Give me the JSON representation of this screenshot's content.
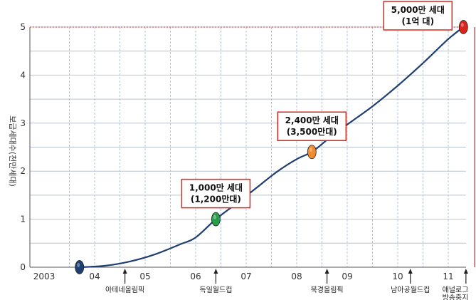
{
  "chart_data": {
    "type": "line",
    "ylabel": "보급세대수(천만세대)",
    "ylim": [
      0,
      5
    ],
    "yticks": [
      "0",
      "1",
      "2",
      "3",
      "4",
      "5"
    ],
    "xlim": [
      2003,
      2011.3
    ],
    "xticks": [
      {
        "x": 2003,
        "label": "2003"
      },
      {
        "x": 2004,
        "label": "04"
      },
      {
        "x": 2005,
        "label": "05"
      },
      {
        "x": 2006,
        "label": "06"
      },
      {
        "x": 2007,
        "label": "07"
      },
      {
        "x": 2008,
        "label": "08"
      },
      {
        "x": 2009,
        "label": "09"
      },
      {
        "x": 2010,
        "label": "10"
      },
      {
        "x": 2011,
        "label": "11"
      }
    ],
    "grid": true,
    "series": [
      {
        "color": "#1f3f73",
        "points": [
          {
            "x": 2003.7,
            "y": 0.0
          },
          {
            "x": 2004.2,
            "y": 0.03
          },
          {
            "x": 2004.7,
            "y": 0.12
          },
          {
            "x": 2005.2,
            "y": 0.27
          },
          {
            "x": 2005.7,
            "y": 0.48
          },
          {
            "x": 2006.0,
            "y": 0.62
          },
          {
            "x": 2006.4,
            "y": 1.0
          },
          {
            "x": 2006.8,
            "y": 1.32
          },
          {
            "x": 2007.2,
            "y": 1.65
          },
          {
            "x": 2007.6,
            "y": 1.98
          },
          {
            "x": 2008.0,
            "y": 2.25
          },
          {
            "x": 2008.3,
            "y": 2.4
          },
          {
            "x": 2008.6,
            "y": 2.65
          },
          {
            "x": 2009.0,
            "y": 2.97
          },
          {
            "x": 2009.5,
            "y": 3.35
          },
          {
            "x": 2010.0,
            "y": 3.78
          },
          {
            "x": 2010.5,
            "y": 4.25
          },
          {
            "x": 2011.0,
            "y": 4.75
          },
          {
            "x": 2011.3,
            "y": 5.0
          }
        ]
      }
    ],
    "markers": [
      {
        "x": 2003.7,
        "y": 0,
        "color": "#1f3f73"
      },
      {
        "x": 2006.4,
        "y": 1.0,
        "color": "#2a9d4a"
      },
      {
        "x": 2008.3,
        "y": 2.4,
        "color": "#f28a2e"
      },
      {
        "x": 2011.3,
        "y": 5.0,
        "color": "#d9261c"
      }
    ],
    "annotations": [
      {
        "x": 2006.4,
        "y": 1.0,
        "lines": [
          "1,000만 세대",
          "(1,200만대)"
        ]
      },
      {
        "x": 2008.3,
        "y": 2.4,
        "lines": [
          "2,400만 세대",
          "(3,500만대)"
        ]
      },
      {
        "x": 2011.3,
        "y": 5.0,
        "lines": [
          "5,000만 세대",
          "(1억 대)"
        ]
      }
    ],
    "events": [
      {
        "x": 2004.6,
        "label": "아테네올림픽"
      },
      {
        "x": 2006.4,
        "label": "독일월드컵"
      },
      {
        "x": 2008.6,
        "label": "북경올림픽"
      },
      {
        "x": 2010.25,
        "label": "남아공월드컵"
      },
      {
        "x": 2011.35,
        "label": "애널로그",
        "label2": "방송중지"
      }
    ],
    "colors": {
      "grid": "#b8c4d6",
      "axis": "#555555",
      "annotation_border": "#d9261c",
      "reference_line": "#d9261c"
    }
  }
}
